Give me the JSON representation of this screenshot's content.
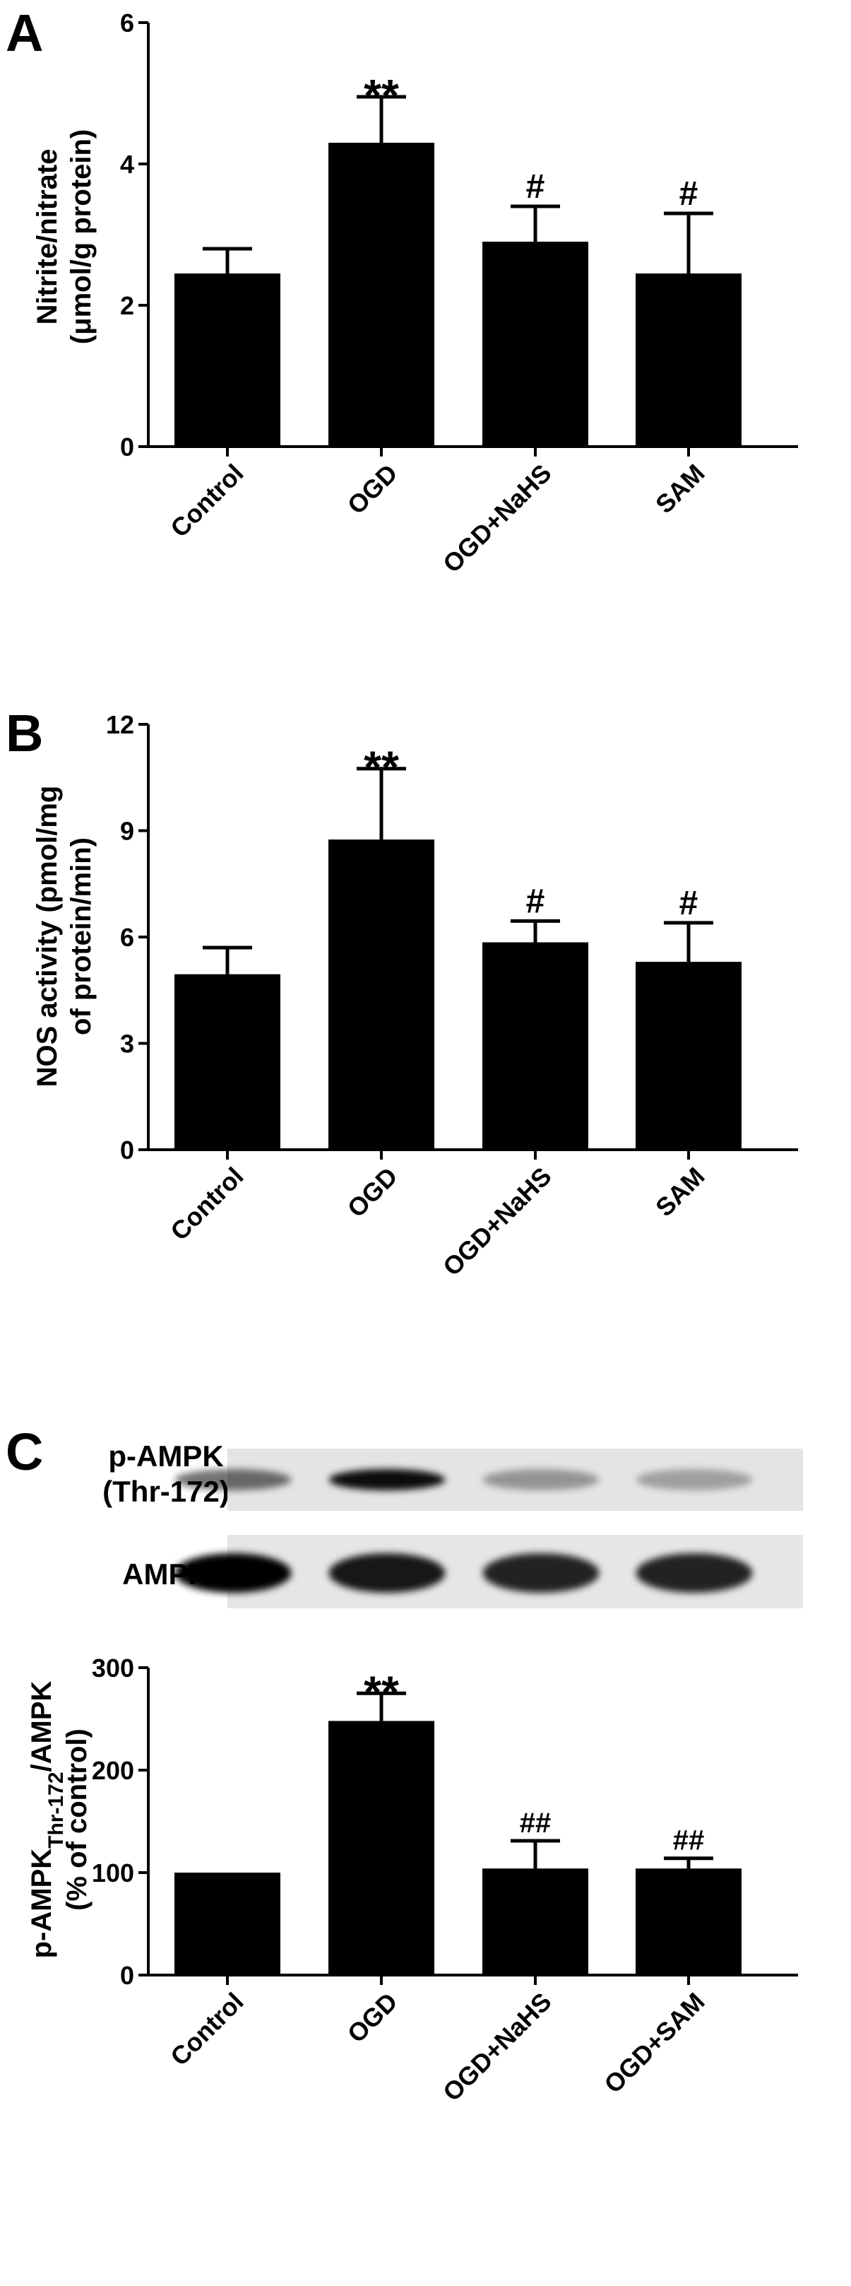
{
  "figure": {
    "panels": [
      {
        "letter": "A",
        "ylabel_lines": [
          "Nitrite/nitrate",
          "(μmol/g protein)"
        ],
        "yticks": [
          "0",
          "2",
          "4",
          "6"
        ],
        "categories": [
          "Control",
          "OGD",
          "OGD+NaHS",
          "SAM"
        ],
        "significance": [
          "",
          "**",
          "#",
          "#"
        ]
      },
      {
        "letter": "B",
        "ylabel_lines": [
          "NOS activity (pmol/mg",
          "of protein/min)"
        ],
        "yticks": [
          "0",
          "3",
          "6",
          "9",
          "12"
        ],
        "categories": [
          "Control",
          "OGD",
          "OGD+NaHS",
          "SAM"
        ],
        "significance": [
          "",
          "**",
          "#",
          "#"
        ]
      },
      {
        "letter": "C",
        "ylabel_line1_main": "p-AMPK",
        "ylabel_line1_sub": "Thr-172",
        "ylabel_line1_tail": "/AMPK",
        "ylabel_line2": "(% of control)",
        "yticks": [
          "0",
          "100",
          "200",
          "300"
        ],
        "categories": [
          "Control",
          "OGD",
          "OGD+NaHS",
          "OGD+SAM"
        ],
        "significance": [
          "",
          "**",
          "##",
          "##"
        ],
        "blot_labels": {
          "phospho_line1": "p-AMPK",
          "phospho_line2": "(Thr-172)",
          "total": "AMPK"
        },
        "blot_band_intensity": {
          "phospho": [
            0.55,
            0.95,
            0.35,
            0.3
          ],
          "total": [
            1.0,
            0.9,
            0.85,
            0.85
          ]
        }
      }
    ]
  },
  "chart_data": [
    {
      "type": "bar",
      "title": "",
      "xlabel": "",
      "ylabel": "Nitrite/nitrate (μmol/g protein)",
      "categories": [
        "Control",
        "OGD",
        "OGD+NaHS",
        "SAM"
      ],
      "values": [
        2.45,
        4.3,
        2.9,
        2.45
      ],
      "errors": [
        0.35,
        0.65,
        0.5,
        0.85
      ],
      "ylim": [
        0,
        6
      ],
      "yticks": [
        0,
        2,
        4,
        6
      ],
      "annotations": [
        "",
        "**",
        "#",
        "#"
      ],
      "bar_color": "#000000",
      "grid": false
    },
    {
      "type": "bar",
      "title": "",
      "xlabel": "",
      "ylabel": "NOS activity (pmol/mg of protein/min)",
      "categories": [
        "Control",
        "OGD",
        "OGD+NaHS",
        "SAM"
      ],
      "values": [
        4.95,
        8.75,
        5.85,
        5.3
      ],
      "errors": [
        0.75,
        2.0,
        0.6,
        1.1
      ],
      "ylim": [
        0,
        12
      ],
      "yticks": [
        0,
        3,
        6,
        9,
        12
      ],
      "annotations": [
        "",
        "**",
        "#",
        "#"
      ],
      "bar_color": "#000000",
      "grid": false
    },
    {
      "type": "bar",
      "title": "",
      "xlabel": "",
      "ylabel": "p-AMPKThr-172/AMPK (% of control)",
      "categories": [
        "Control",
        "OGD",
        "OGD+NaHS",
        "OGD+SAM"
      ],
      "values": [
        100,
        248,
        104,
        104
      ],
      "errors": [
        0,
        27,
        27,
        10
      ],
      "ylim": [
        0,
        300
      ],
      "yticks": [
        0,
        100,
        200,
        300
      ],
      "annotations": [
        "",
        "**",
        "##",
        "##"
      ],
      "bar_color": "#000000",
      "grid": false
    }
  ]
}
